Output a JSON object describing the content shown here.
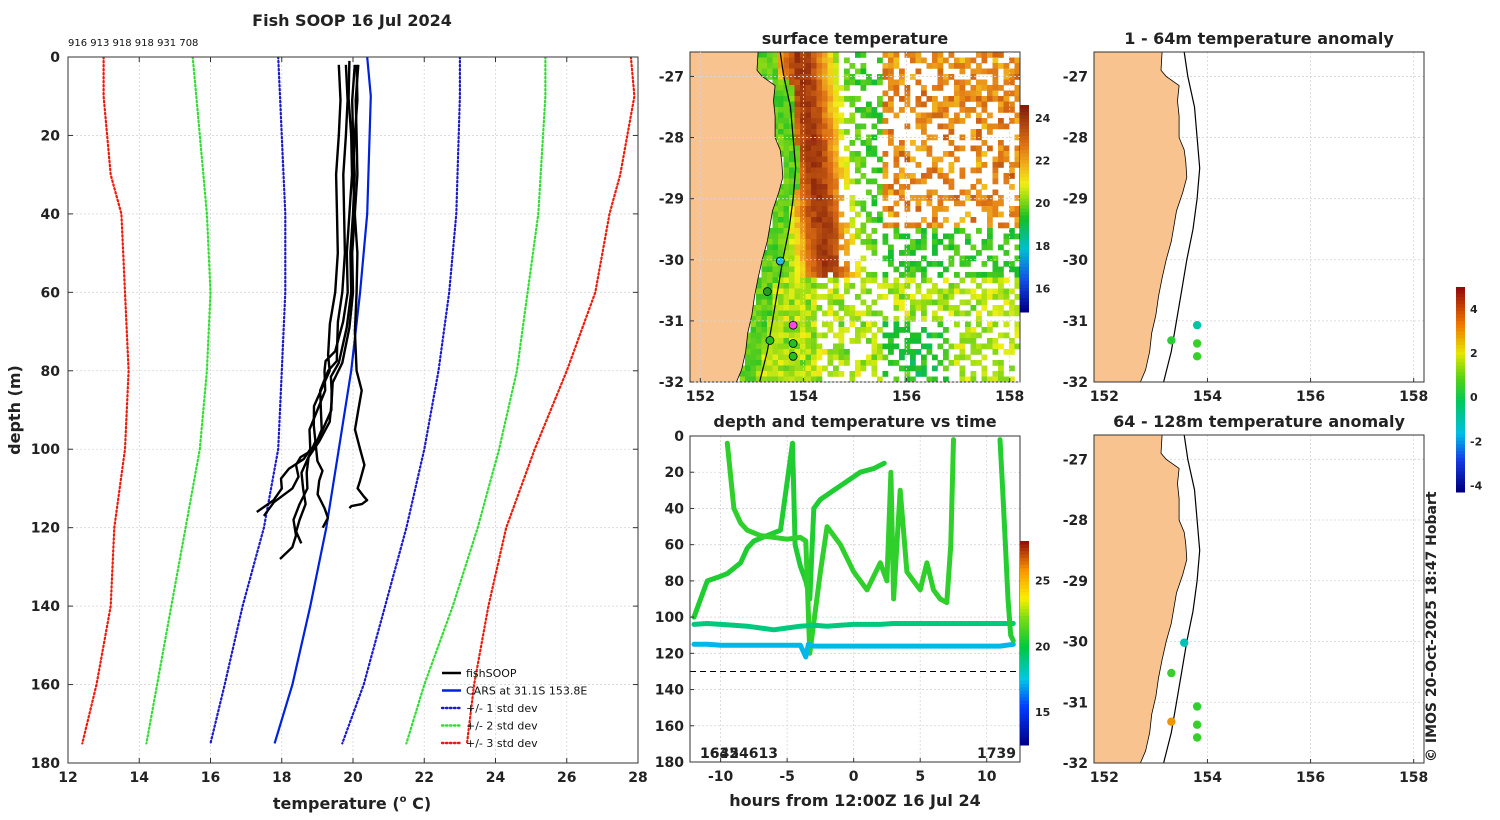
{
  "copyright": "© IMOS 20-Oct-2025 18:47 Hobart",
  "colors": {
    "land": "#f8c38f",
    "cars": "#0022dd",
    "std1": "#1a1ad0",
    "std2": "#33dd33",
    "std3": "#ee1a0a",
    "profile": "#000000"
  },
  "chart_data": [
    {
      "type": "line",
      "title": "Fish SOOP 16 Jul 2024",
      "xlabel": "temperature (",
      "xlabel_sup": "o",
      "xlabel_end": " C)",
      "ylabel": "depth (m)",
      "xlim": [
        12,
        28
      ],
      "ylim": [
        0,
        180
      ],
      "y_reversed": true,
      "xticks": [
        "12",
        "14",
        "16",
        "18",
        "20",
        "22",
        "24",
        "26",
        "28"
      ],
      "yticks": [
        "0",
        "20",
        "40",
        "60",
        "80",
        "100",
        "120",
        "140",
        "160",
        "180"
      ],
      "profile_ids": "916 913 918 918 931 708",
      "legend": [
        "fishSOOP",
        "CARS at 31.1S 153.8E",
        "+/- 1 std dev",
        "+/- 2 std dev",
        "+/- 3 std dev"
      ],
      "series": [
        {
          "name": "CARS at 31.1S 153.8E",
          "style": "solid",
          "depth": [
            0,
            10,
            40,
            60,
            80,
            100,
            120,
            140,
            160,
            175
          ],
          "temp": [
            20.4,
            20.5,
            20.4,
            20.2,
            19.95,
            19.6,
            19.25,
            18.8,
            18.3,
            17.8
          ]
        },
        {
          "name": "+1 std dev",
          "style": "dotted",
          "depth": [
            0,
            10,
            40,
            60,
            80,
            100,
            120,
            140,
            160,
            175
          ],
          "temp": [
            23.0,
            23.0,
            22.9,
            22.7,
            22.4,
            22.0,
            21.5,
            20.9,
            20.3,
            19.7
          ]
        },
        {
          "name": "-1 std dev",
          "style": "dotted",
          "depth": [
            0,
            10,
            40,
            60,
            80,
            100,
            120,
            140,
            160,
            175
          ],
          "temp": [
            17.9,
            17.95,
            18.1,
            18.1,
            18.0,
            17.9,
            17.5,
            16.9,
            16.4,
            16.0
          ]
        },
        {
          "name": "+2 std dev",
          "style": "dotted",
          "depth": [
            0,
            10,
            40,
            60,
            80,
            100,
            120,
            140,
            160,
            175
          ],
          "temp": [
            25.4,
            25.4,
            25.2,
            24.9,
            24.6,
            24.1,
            23.5,
            22.8,
            22.0,
            21.5
          ]
        },
        {
          "name": "-2 std dev",
          "style": "dotted",
          "depth": [
            0,
            10,
            40,
            60,
            80,
            100,
            120,
            140,
            160,
            175
          ],
          "temp": [
            15.5,
            15.6,
            15.9,
            16.0,
            15.9,
            15.7,
            15.3,
            14.9,
            14.5,
            14.2
          ]
        },
        {
          "name": "+3 std dev",
          "style": "dotted",
          "depth": [
            0,
            10,
            30,
            40,
            60,
            80,
            100,
            120,
            140,
            160,
            175
          ],
          "temp": [
            27.8,
            27.9,
            27.5,
            27.2,
            26.8,
            26.0,
            25.1,
            24.3,
            23.8,
            23.4,
            23.2
          ]
        },
        {
          "name": "-3 std dev",
          "style": "dotted",
          "depth": [
            0,
            10,
            30,
            40,
            60,
            80,
            100,
            120,
            140,
            160,
            175
          ],
          "temp": [
            13.0,
            13.0,
            13.2,
            13.5,
            13.6,
            13.7,
            13.6,
            13.3,
            13.2,
            12.8,
            12.4
          ]
        }
      ],
      "profiles": [
        {
          "name": "fishSOOP",
          "depth": [
            1,
            20,
            40,
            60,
            75,
            80,
            90,
            100,
            105,
            110,
            116
          ],
          "temp": [
            19.9,
            19.95,
            19.9,
            19.85,
            19.5,
            19.2,
            19.0,
            18.8,
            18.2,
            18.0,
            17.3
          ]
        },
        {
          "name": "fishSOOP",
          "depth": [
            2,
            20,
            40,
            60,
            75,
            80,
            90,
            100,
            104,
            110,
            117
          ],
          "temp": [
            19.8,
            19.8,
            19.75,
            19.7,
            19.55,
            19.3,
            19.1,
            18.9,
            18.4,
            18.3,
            17.5
          ]
        },
        {
          "name": "fishSOOP",
          "depth": [
            2,
            20,
            40,
            60,
            78,
            85,
            95,
            103,
            108,
            115,
            120
          ],
          "temp": [
            20.05,
            20.0,
            20.0,
            19.95,
            19.6,
            19.4,
            19.15,
            19.0,
            19.05,
            19.2,
            19.15
          ]
        },
        {
          "name": "fishSOOP",
          "depth": [
            2,
            20,
            40,
            60,
            76,
            84,
            94,
            102,
            110,
            118,
            124
          ],
          "temp": [
            19.6,
            19.6,
            19.55,
            19.5,
            19.3,
            19.15,
            18.9,
            18.75,
            18.6,
            18.5,
            18.55
          ]
        },
        {
          "name": "fishSOOP",
          "depth": [
            2,
            20,
            40,
            60,
            78,
            88,
            98,
            106,
            114,
            122,
            128
          ],
          "temp": [
            20.15,
            20.1,
            20.05,
            20.0,
            19.7,
            19.4,
            19.05,
            18.7,
            18.5,
            18.4,
            17.95
          ]
        },
        {
          "name": "fishSOOP",
          "depth": [
            2,
            20,
            40,
            60,
            80,
            90,
            100,
            108,
            112,
            114,
            115
          ],
          "temp": [
            20.1,
            20.05,
            20.05,
            20.1,
            20.1,
            20.15,
            20.2,
            20.2,
            20.3,
            20.25,
            19.9
          ]
        }
      ]
    },
    {
      "type": "heatmap",
      "title": "surface temperature",
      "xlim": [
        151.8,
        158.2
      ],
      "ylim": [
        -32,
        -26.6
      ],
      "xticks": [
        "152",
        "154",
        "156",
        "158"
      ],
      "yticks": [
        "-27",
        "-28",
        "-29",
        "-30",
        "-31",
        "-32"
      ],
      "colorbar_ticks": [
        "16",
        "18",
        "20",
        "22",
        "24"
      ],
      "colorbar_range": [
        14.9,
        24.6
      ],
      "stations": [
        {
          "lon": 153.55,
          "lat": -30.02,
          "color": "#22b8e8"
        },
        {
          "lon": 153.3,
          "lat": -30.52,
          "color": "#22a020"
        },
        {
          "lon": 153.8,
          "lat": -31.07,
          "color": "#ff44ee"
        },
        {
          "lon": 153.8,
          "lat": -31.37,
          "color": "#22c020"
        },
        {
          "lon": 153.35,
          "lat": -31.32,
          "color": "#22c020"
        },
        {
          "lon": 153.8,
          "lat": -31.58,
          "color": "#22c020"
        }
      ]
    },
    {
      "type": "scatter",
      "title": "depth and temperature vs time",
      "xlabel": "hours from 12:00Z 16 Jul 24",
      "xlim": [
        -12.3,
        12.5
      ],
      "ylim": [
        0,
        180
      ],
      "y_reversed": true,
      "xticks": [
        "-10",
        "-5",
        "0",
        "5",
        "10"
      ],
      "yticks": [
        "0",
        "20",
        "40",
        "60",
        "80",
        "100",
        "120",
        "140",
        "160",
        "180"
      ],
      "colorbar_ticks": [
        "15",
        "20",
        "25"
      ],
      "colorbar_range": [
        12.5,
        28
      ],
      "reference_depth": 130,
      "corner_labels": {
        "left": "1635",
        "left_overlap": "16424613",
        "right": "1739"
      },
      "tracks": [
        {
          "temp": 20.5,
          "hours": [
            -12,
            -11.5,
            -11.0,
            -10.2,
            -9.5,
            -8.5,
            -8.0,
            -7.5,
            -6.5,
            -5.5,
            -4.6,
            -4.4,
            -4.0,
            -3.6,
            -3.3,
            -3.0,
            -2.5,
            -1.5,
            -0.5,
            0.5,
            1.5,
            2.3
          ],
          "depth": [
            100,
            90,
            80,
            78,
            76,
            70,
            62,
            58,
            55,
            52,
            4,
            60,
            72,
            80,
            90,
            40,
            35,
            30,
            25,
            20,
            18,
            15
          ]
        },
        {
          "temp": 20.8,
          "hours": [
            -9.5,
            -9.0,
            -8.5,
            -8.0,
            -7.0,
            -6.0,
            -5.0,
            -4.0,
            -3.6,
            -3.3,
            -2.5,
            -2.0,
            -1.0,
            0,
            1,
            2,
            2.5,
            2.8,
            3.0,
            3.5,
            4,
            4.5,
            5,
            5.5,
            6,
            6.5,
            7,
            7.3,
            7.5
          ],
          "depth": [
            4,
            40,
            48,
            52,
            55,
            56,
            57,
            56,
            58,
            120,
            75,
            50,
            60,
            75,
            85,
            70,
            80,
            20,
            90,
            30,
            75,
            80,
            85,
            70,
            85,
            90,
            92,
            60,
            2
          ]
        },
        {
          "temp": 19.0,
          "hours": [
            -12,
            -11,
            -10,
            -9,
            -8,
            -7,
            -6,
            -5,
            -4,
            -3,
            -2,
            -1,
            0,
            1,
            2,
            3,
            4,
            5,
            6,
            7,
            8,
            9,
            10,
            11,
            12
          ],
          "depth": [
            104,
            103.5,
            104,
            104.5,
            105,
            106,
            107,
            106,
            105,
            104.5,
            105,
            104.5,
            104,
            104,
            104,
            103.5,
            103.5,
            103.5,
            103.5,
            103.5,
            103.5,
            103.5,
            103.5,
            103.5,
            103.5
          ]
        },
        {
          "temp": 17.2,
          "hours": [
            -12,
            -11,
            -10,
            -9,
            -8,
            -7,
            -6,
            -5,
            -4,
            -3.6,
            -3.4,
            -3,
            -2,
            -1,
            0,
            1,
            2,
            3,
            4,
            5,
            6,
            7,
            8,
            9,
            10,
            11,
            12
          ],
          "depth": [
            115,
            115,
            115.5,
            115.5,
            115.5,
            115.5,
            115.5,
            115.5,
            115.5,
            122,
            115,
            116,
            116,
            116,
            116,
            116,
            116,
            116,
            116,
            116,
            116,
            116,
            116,
            116,
            116,
            116,
            115
          ]
        },
        {
          "temp": 20.6,
          "hours": [
            11.0,
            11.2,
            11.4,
            11.6,
            11.8,
            12.0
          ],
          "depth": [
            2,
            30,
            60,
            90,
            110,
            113
          ]
        }
      ]
    },
    {
      "type": "scatter",
      "title": "1 - 64m temperature anomaly",
      "xlim": [
        151.8,
        158.2
      ],
      "ylim": [
        -32,
        -26.6
      ],
      "xticks": [
        "152",
        "154",
        "156",
        "158"
      ],
      "yticks": [
        "-27",
        "-28",
        "-29",
        "-30",
        "-31",
        "-32"
      ],
      "colorbar_ticks": [
        "-4",
        "-2",
        "0",
        "2",
        "4"
      ],
      "colorbar_range": [
        -4.3,
        5.0
      ],
      "points": [
        {
          "lon": 153.8,
          "lat": -31.07,
          "value": -1.0
        },
        {
          "lon": 153.3,
          "lat": -31.32,
          "value": 0.3
        },
        {
          "lon": 153.8,
          "lat": -31.37,
          "value": 0.5
        },
        {
          "lon": 153.8,
          "lat": -31.58,
          "value": 0.5
        }
      ]
    },
    {
      "type": "scatter",
      "title": "64 - 128m temperature anomaly",
      "xlim": [
        151.8,
        158.2
      ],
      "ylim": [
        -32,
        -26.6
      ],
      "xticks": [
        "152",
        "154",
        "156",
        "158"
      ],
      "yticks": [
        "-27",
        "-28",
        "-29",
        "-30",
        "-31",
        "-32"
      ],
      "points": [
        {
          "lon": 153.55,
          "lat": -30.02,
          "value": -1.2
        },
        {
          "lon": 153.3,
          "lat": -30.52,
          "value": 0.5
        },
        {
          "lon": 153.8,
          "lat": -31.07,
          "value": 0.4
        },
        {
          "lon": 153.3,
          "lat": -31.32,
          "value": 3.0
        },
        {
          "lon": 153.8,
          "lat": -31.37,
          "value": 0.5
        },
        {
          "lon": 153.8,
          "lat": -31.58,
          "value": 0.5
        }
      ]
    }
  ]
}
